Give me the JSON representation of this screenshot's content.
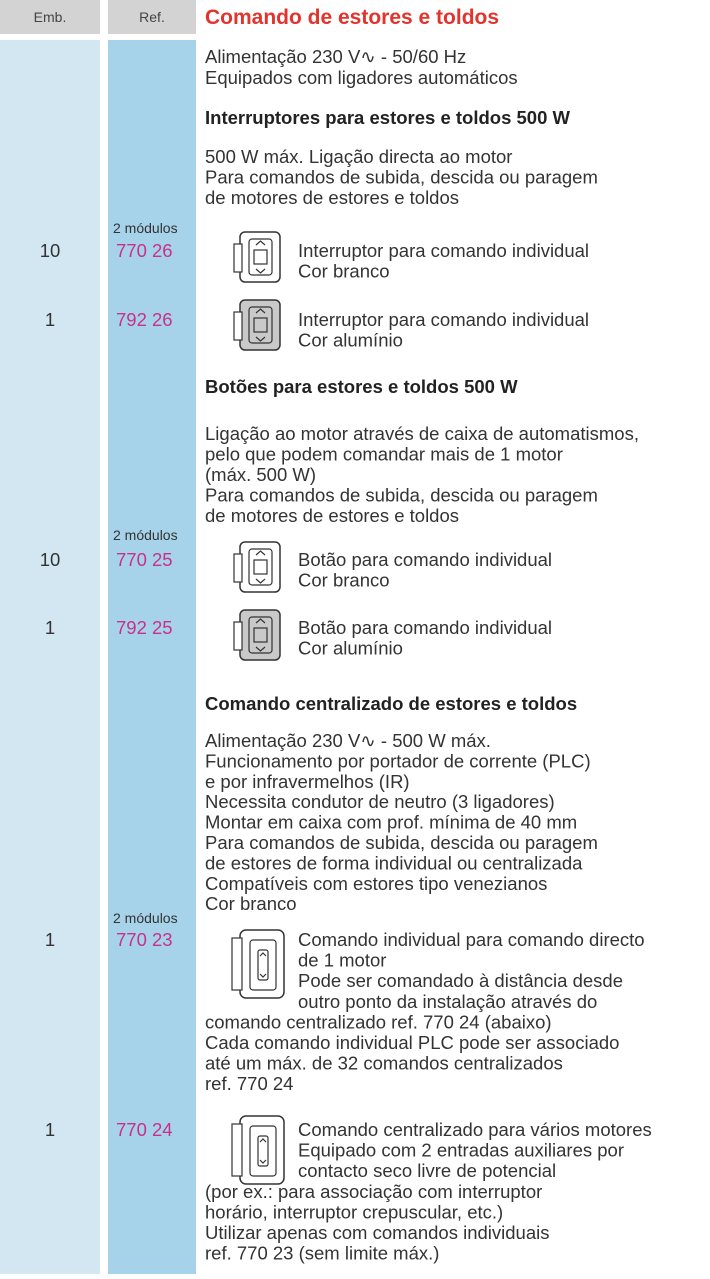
{
  "header": {
    "emb": "Emb.",
    "ref": "Ref.",
    "title": "Comando de estores e toldos"
  },
  "intro": [
    "Alimentação 230 V∿ - 50/60 Hz",
    "Equipados com ligadores automáticos"
  ],
  "sections": [
    {
      "title": "Interruptores para estores e toldos 500 W",
      "description": [
        "500 W máx. Ligação directa ao motor",
        "Para comandos de subida, descida ou paragem",
        "de motores de estores e toldos"
      ],
      "modules": "2 módulos",
      "items": [
        {
          "emb": "10",
          "ref": "770 26",
          "description": [
            "Interruptor para comando individual",
            "Cor branco"
          ]
        },
        {
          "emb": "1",
          "ref": "792 26",
          "description": [
            "Interruptor para comando individual",
            "Cor alumínio"
          ]
        }
      ]
    },
    {
      "title": "Botões para estores e toldos 500 W",
      "description": [
        "Ligação ao motor através de caixa de automatismos,",
        "pelo que podem comandar mais de 1 motor",
        "(máx. 500 W)",
        "Para comandos de subida, descida ou paragem",
        "de motores de estores e toldos"
      ],
      "modules": "2 módulos",
      "items": [
        {
          "emb": "10",
          "ref": "770 25",
          "description": [
            "Botão para comando individual",
            "Cor branco"
          ]
        },
        {
          "emb": "1",
          "ref": "792 25",
          "description": [
            "Botão para comando individual",
            "Cor alumínio"
          ]
        }
      ]
    },
    {
      "title": "Comando centralizado de estores e toldos",
      "description": [
        "Alimentação 230 V∿ - 500 W máx.",
        "Funcionamento por portador de corrente (PLC)",
        "e por infravermelhos (IR)",
        "Necessita condutor de neutro (3 ligadores)",
        "Montar em caixa com prof. mínima de 40 mm",
        "Para comandos de subida, descida ou paragem",
        "de estores de forma individual ou centralizada",
        "Compatíveis com estores tipo venezianos",
        "Cor branco"
      ],
      "modules": "2 módulos",
      "items": [
        {
          "emb": "1",
          "ref": "770 23",
          "description": [
            "Comando individual para comando directo",
            "de 1 motor",
            "Pode ser comandado à distância desde",
            "outro ponto da instalação através do",
            "comando centralizado ref. 770 24 (abaixo)",
            "Cada comando individual PLC pode ser associado",
            "até um máx. de 32 comandos centralizados",
            "ref. 770 24"
          ]
        },
        {
          "emb": "1",
          "ref": "770 24",
          "description": [
            "Comando centralizado para vários motores",
            "Equipado com 2 entradas auxiliares por",
            "contacto seco livre de potencial",
            "(por ex.: para associação com interruptor",
            "horário, interruptor crepuscular, etc.)",
            "Utilizar apenas com comandos individuais",
            "ref. 770 23 (sem limite máx.)"
          ]
        }
      ]
    }
  ]
}
